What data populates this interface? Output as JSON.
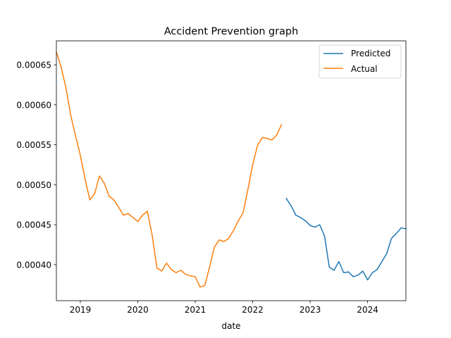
{
  "chart_data": {
    "type": "line",
    "title": "Accident Prevention graph",
    "xlabel": "date",
    "ylabel": "",
    "xlim": [
      "2018-08",
      "2024-09"
    ],
    "ylim": [
      0.000355,
      0.00068
    ],
    "x_ticks": [
      "2019",
      "2020",
      "2021",
      "2022",
      "2023",
      "2024"
    ],
    "y_ticks": [
      "0.00040",
      "0.00045",
      "0.00050",
      "0.00055",
      "0.00060",
      "0.00065"
    ],
    "legend_position": "upper-right",
    "grid": false,
    "series": [
      {
        "name": "Predicted",
        "color": "#1f77b4",
        "points": [
          [
            "2022-08",
            0.000483
          ],
          [
            "2022-09",
            0.000474
          ],
          [
            "2022-10",
            0.000462
          ],
          [
            "2022-11",
            0.000459
          ],
          [
            "2022-12",
            0.000455
          ],
          [
            "2023-01",
            0.000449
          ],
          [
            "2023-02",
            0.000447
          ],
          [
            "2023-03",
            0.00045
          ],
          [
            "2023-04",
            0.000436
          ],
          [
            "2023-05",
            0.000397
          ],
          [
            "2023-06",
            0.000393
          ],
          [
            "2023-07",
            0.000404
          ],
          [
            "2023-08",
            0.00039
          ],
          [
            "2023-09",
            0.000391
          ],
          [
            "2023-10",
            0.000385
          ],
          [
            "2023-11",
            0.000387
          ],
          [
            "2023-12",
            0.000392
          ],
          [
            "2024-01",
            0.000381
          ],
          [
            "2024-02",
            0.00039
          ],
          [
            "2024-03",
            0.000394
          ],
          [
            "2024-04",
            0.000404
          ],
          [
            "2024-05",
            0.000414
          ],
          [
            "2024-06",
            0.000433
          ],
          [
            "2024-07",
            0.000439
          ],
          [
            "2024-08",
            0.000446
          ],
          [
            "2024-09",
            0.000445
          ]
        ]
      },
      {
        "name": "Actual",
        "color": "#ff7f0e",
        "points": [
          [
            "2018-08",
            0.000666
          ],
          [
            "2018-09",
            0.000647
          ],
          [
            "2018-10",
            0.000621
          ],
          [
            "2018-11",
            0.000587
          ],
          [
            "2018-12",
            0.000561
          ],
          [
            "2019-01",
            0.000537
          ],
          [
            "2019-02",
            0.000507
          ],
          [
            "2019-03",
            0.000481
          ],
          [
            "2019-04",
            0.000489
          ],
          [
            "2019-05",
            0.000511
          ],
          [
            "2019-06",
            0.000502
          ],
          [
            "2019-07",
            0.000486
          ],
          [
            "2019-08",
            0.000481
          ],
          [
            "2019-09",
            0.000472
          ],
          [
            "2019-10",
            0.000462
          ],
          [
            "2019-11",
            0.000464
          ],
          [
            "2019-12",
            0.000459
          ],
          [
            "2020-01",
            0.000454
          ],
          [
            "2020-02",
            0.000462
          ],
          [
            "2020-03",
            0.000467
          ],
          [
            "2020-04",
            0.000437
          ],
          [
            "2020-05",
            0.000396
          ],
          [
            "2020-06",
            0.000392
          ],
          [
            "2020-07",
            0.000402
          ],
          [
            "2020-08",
            0.000394
          ],
          [
            "2020-09",
            0.00039
          ],
          [
            "2020-10",
            0.000393
          ],
          [
            "2020-11",
            0.000388
          ],
          [
            "2020-12",
            0.000386
          ],
          [
            "2021-01",
            0.000385
          ],
          [
            "2021-02",
            0.000372
          ],
          [
            "2021-03",
            0.000374
          ],
          [
            "2021-04",
            0.000397
          ],
          [
            "2021-05",
            0.000422
          ],
          [
            "2021-06",
            0.000431
          ],
          [
            "2021-07",
            0.000429
          ],
          [
            "2021-08",
            0.000433
          ],
          [
            "2021-09",
            0.000443
          ],
          [
            "2021-10",
            0.000455
          ],
          [
            "2021-11",
            0.000465
          ],
          [
            "2021-12",
            0.000494
          ],
          [
            "2022-01",
            0.000525
          ],
          [
            "2022-02",
            0.000549
          ],
          [
            "2022-03",
            0.000559
          ],
          [
            "2022-04",
            0.000558
          ],
          [
            "2022-05",
            0.000556
          ],
          [
            "2022-06",
            0.000562
          ],
          [
            "2022-07",
            0.000575
          ]
        ]
      }
    ]
  }
}
